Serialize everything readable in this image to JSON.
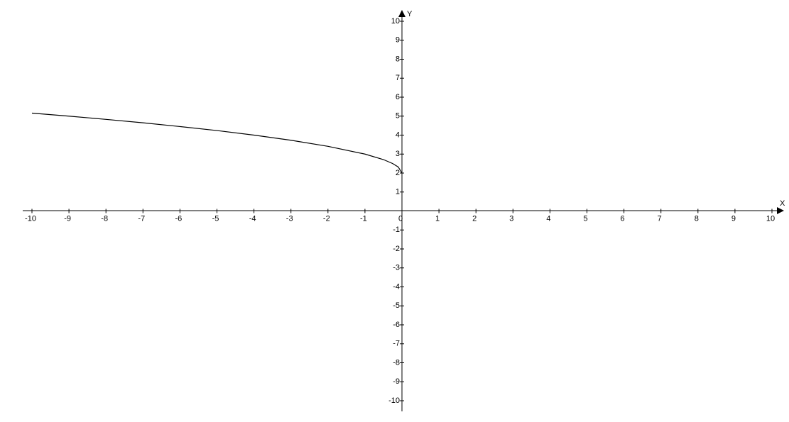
{
  "chart_data": {
    "type": "line",
    "x_label": "X",
    "y_label": "Y",
    "series": [
      {
        "color": "#000000",
        "x": [
          -10,
          -9,
          -8,
          -7,
          -6,
          -5,
          -4,
          -3,
          -2,
          -1,
          -0.5,
          -0.25,
          -0.1,
          0
        ],
        "values": [
          5.16,
          5,
          4.83,
          4.65,
          4.45,
          4.24,
          4,
          3.73,
          3.41,
          3,
          2.71,
          2.5,
          2.32,
          2
        ]
      }
    ],
    "xlim": [
      -10,
      10
    ],
    "ylim": [
      -10,
      10
    ],
    "xticks": [
      -10,
      -9,
      -8,
      -7,
      -6,
      -5,
      -4,
      -3,
      -2,
      -1,
      0,
      1,
      2,
      3,
      4,
      5,
      6,
      7,
      8,
      9,
      10
    ],
    "yticks": [
      -10,
      -9,
      -8,
      -7,
      -6,
      -5,
      -4,
      -3,
      -2,
      -1,
      1,
      2,
      3,
      4,
      5,
      6,
      7,
      8,
      9,
      10
    ],
    "grid": false
  }
}
